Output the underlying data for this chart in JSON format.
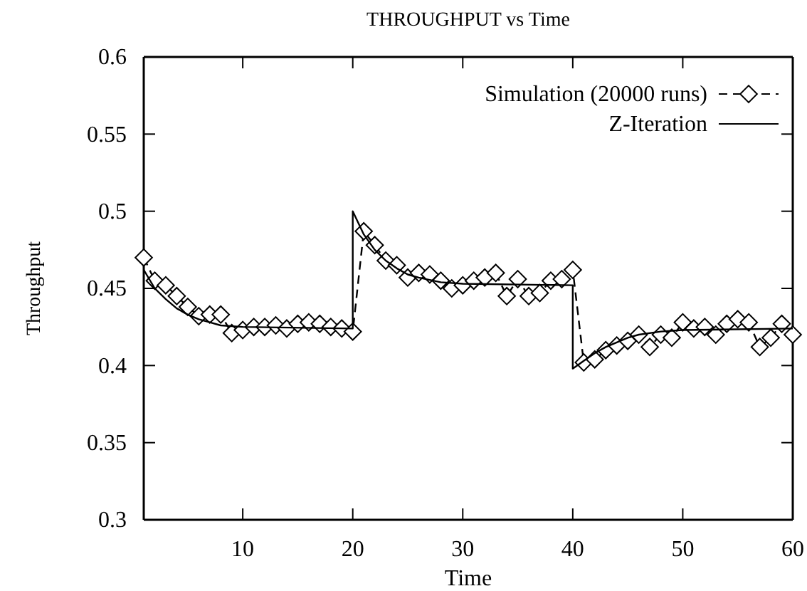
{
  "chart_data": {
    "type": "line",
    "title": "THROUGHPUT vs Time",
    "xlabel": "Time",
    "ylabel": "Throughput",
    "xlim": [
      1,
      60
    ],
    "xticks": [
      10,
      20,
      30,
      40,
      50,
      60
    ],
    "ylim": [
      0.3,
      0.6
    ],
    "yticks": [
      0.3,
      0.35,
      0.4,
      0.45,
      0.5,
      0.55,
      0.6
    ],
    "grid": false,
    "legend": "top right",
    "series": [
      {
        "name": "Simulation (20000 runs)",
        "color": "#000000",
        "marker": "diamond",
        "line_style": "dashed",
        "x": [
          1,
          2,
          3,
          4,
          5,
          6,
          7,
          8,
          9,
          10,
          11,
          12,
          13,
          14,
          15,
          16,
          17,
          18,
          19,
          20,
          21,
          22,
          23,
          24,
          25,
          26,
          27,
          28,
          29,
          30,
          31,
          32,
          33,
          34,
          35,
          36,
          37,
          38,
          39,
          40,
          41,
          42,
          43,
          44,
          45,
          46,
          47,
          48,
          49,
          50,
          51,
          52,
          53,
          54,
          55,
          56,
          57,
          58,
          59,
          60
        ],
        "values": [
          0.47,
          0.455,
          0.452,
          0.445,
          0.438,
          0.432,
          0.433,
          0.433,
          0.421,
          0.423,
          0.425,
          0.425,
          0.426,
          0.424,
          0.427,
          0.428,
          0.427,
          0.425,
          0.424,
          0.422,
          0.487,
          0.478,
          0.468,
          0.465,
          0.457,
          0.46,
          0.459,
          0.455,
          0.45,
          0.452,
          0.455,
          0.457,
          0.46,
          0.445,
          0.456,
          0.445,
          0.447,
          0.455,
          0.456,
          0.462,
          0.402,
          0.404,
          0.41,
          0.413,
          0.416,
          0.42,
          0.412,
          0.42,
          0.418,
          0.428,
          0.424,
          0.425,
          0.42,
          0.427,
          0.43,
          0.428,
          0.412,
          0.418,
          0.427,
          0.42
        ]
      },
      {
        "name": "Z-Iteration",
        "color": "#000000",
        "marker": "none",
        "line_style": "solid",
        "x": [
          1,
          2,
          3,
          4,
          5,
          6,
          7,
          8,
          10,
          20,
          20,
          21,
          22,
          23,
          24,
          25,
          26,
          28,
          30,
          40,
          40,
          41,
          42,
          43,
          44,
          45,
          46,
          48,
          50,
          60
        ],
        "values": [
          0.462,
          0.45,
          0.443,
          0.437,
          0.433,
          0.43,
          0.428,
          0.426,
          0.425,
          0.424,
          0.5,
          0.485,
          0.475,
          0.468,
          0.463,
          0.459,
          0.457,
          0.454,
          0.453,
          0.452,
          0.398,
          0.403,
          0.408,
          0.412,
          0.415,
          0.418,
          0.42,
          0.422,
          0.423,
          0.424
        ]
      }
    ]
  }
}
